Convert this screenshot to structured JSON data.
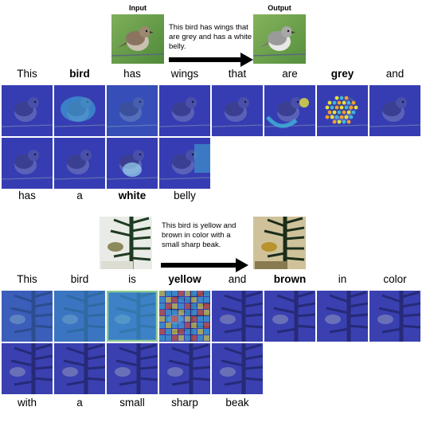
{
  "example1": {
    "input_label": "Input",
    "output_label": "Output",
    "caption": "This bird has wings that are grey and has a white belly.",
    "row1_words": [
      {
        "text": "This",
        "bold": false
      },
      {
        "text": "bird",
        "bold": true
      },
      {
        "text": "has",
        "bold": false
      },
      {
        "text": "wings",
        "bold": false
      },
      {
        "text": "that",
        "bold": false
      },
      {
        "text": "are",
        "bold": false
      },
      {
        "text": "grey",
        "bold": true
      },
      {
        "text": "and",
        "bold": false
      }
    ],
    "row2_words": [
      {
        "text": "has",
        "bold": false
      },
      {
        "text": "a",
        "bold": false
      },
      {
        "text": "white",
        "bold": true
      },
      {
        "text": "belly",
        "bold": false
      }
    ]
  },
  "example2": {
    "caption": "This bird is yellow and brown in color with a small sharp beak.",
    "row1_words": [
      {
        "text": "This",
        "bold": false
      },
      {
        "text": "bird",
        "bold": false
      },
      {
        "text": "is",
        "bold": false
      },
      {
        "text": "yellow",
        "bold": true
      },
      {
        "text": "and",
        "bold": false
      },
      {
        "text": "brown",
        "bold": true
      },
      {
        "text": "in",
        "bold": false
      },
      {
        "text": "color",
        "bold": false
      }
    ],
    "row2_words": [
      {
        "text": "with",
        "bold": false
      },
      {
        "text": "a",
        "bold": false
      },
      {
        "text": "small",
        "bold": false
      },
      {
        "text": "sharp",
        "bold": false
      },
      {
        "text": "beak",
        "bold": false
      }
    ]
  },
  "colors": {
    "attention_base": "#2b2fa8",
    "attention_mid": "#3fb6d8",
    "attention_hot": "#e6e23a",
    "arrow": "#000000"
  }
}
